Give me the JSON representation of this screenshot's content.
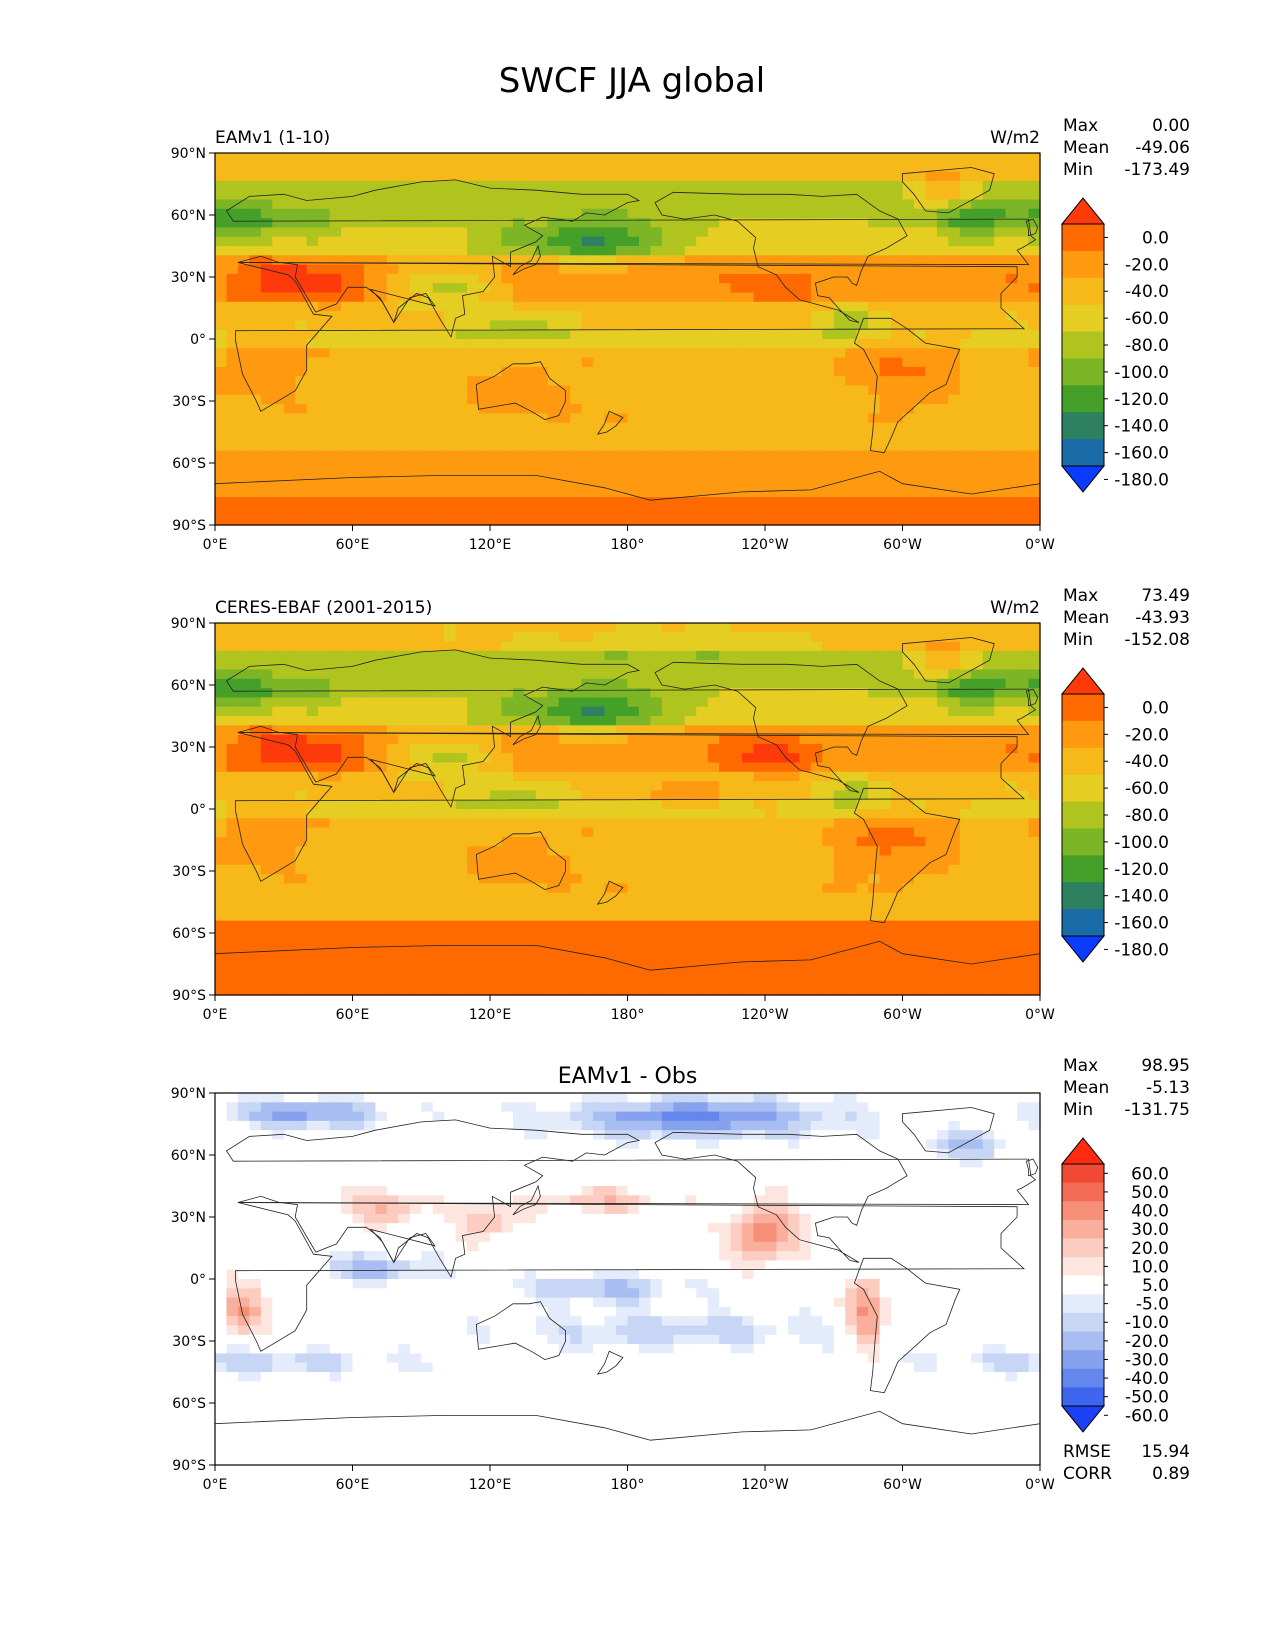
{
  "title": "SWCF JJA global",
  "panels": [
    {
      "id": "test",
      "left_label": "EAMv1 (1-10)",
      "center_label": "",
      "units": "W/m2",
      "stats": [
        {
          "label": "Max",
          "value": "0.00"
        },
        {
          "label": "Mean",
          "value": "-49.06"
        },
        {
          "label": "Min",
          "value": "-173.49"
        }
      ],
      "bottom_stats": [],
      "colorbar": {
        "labels": [
          "0.0",
          "-20.0",
          "-40.0",
          "-60.0",
          "-80.0",
          "-100.0",
          "-120.0",
          "-140.0",
          "-160.0",
          "-180.0"
        ],
        "colors": [
          "#ff3a0a",
          "#ff6a00",
          "#ff9a10",
          "#f7b81a",
          "#e6cd22",
          "#b0c420",
          "#7cb526",
          "#45a02a",
          "#2d8060",
          "#1a6aa8",
          "#0a3cff"
        ]
      }
    },
    {
      "id": "reference",
      "left_label": "CERES-EBAF (2001-2015)",
      "center_label": "",
      "units": "W/m2",
      "stats": [
        {
          "label": "Max",
          "value": "73.49"
        },
        {
          "label": "Mean",
          "value": "-43.93"
        },
        {
          "label": "Min",
          "value": "-152.08"
        }
      ],
      "bottom_stats": [],
      "colorbar": {
        "labels": [
          "0.0",
          "-20.0",
          "-40.0",
          "-60.0",
          "-80.0",
          "-100.0",
          "-120.0",
          "-140.0",
          "-160.0",
          "-180.0"
        ],
        "colors": [
          "#ff3a0a",
          "#ff6a00",
          "#ff9a10",
          "#f7b81a",
          "#e6cd22",
          "#b0c420",
          "#7cb526",
          "#45a02a",
          "#2d8060",
          "#1a6aa8",
          "#0a3cff"
        ]
      }
    },
    {
      "id": "difference",
      "left_label": "",
      "center_label": "EAMv1 - Obs",
      "units": "",
      "stats": [
        {
          "label": "Max",
          "value": "98.95"
        },
        {
          "label": "Mean",
          "value": "-5.13"
        },
        {
          "label": "Min",
          "value": "-131.75"
        }
      ],
      "bottom_stats": [
        {
          "label": "RMSE",
          "value": "15.94"
        },
        {
          "label": "CORR",
          "value": "0.89"
        }
      ],
      "colorbar": {
        "labels": [
          "60.0",
          "50.0",
          "40.0",
          "30.0",
          "20.0",
          "10.0",
          "5.0",
          "-5.0",
          "-10.0",
          "-20.0",
          "-30.0",
          "-40.0",
          "-50.0",
          "-60.0"
        ],
        "colors": [
          "#ff2a10",
          "#f04a35",
          "#f46c55",
          "#f78e78",
          "#faae9c",
          "#fcccc0",
          "#fee6e0",
          "#ffffff",
          "#e4ebfb",
          "#c8d6f6",
          "#a8bdf2",
          "#86a2ee",
          "#6387ec",
          "#3f66ee",
          "#1c40f5"
        ]
      }
    }
  ],
  "chart_data": [
    {
      "type": "heatmap",
      "subtype": "global map, filled contours",
      "title": "EAMv1 (1-10)",
      "units": "W/m2",
      "xlabel": "",
      "ylabel": "",
      "x_ticks": [
        "0°E",
        "60°E",
        "120°E",
        "180°",
        "120°W",
        "60°W",
        "0°W"
      ],
      "y_ticks": [
        "90°N",
        "60°N",
        "30°N",
        "0°",
        "30°S",
        "60°S",
        "90°S"
      ],
      "x_range_deg_east": [
        0,
        360
      ],
      "y_range_deg_lat": [
        -90,
        90
      ],
      "levels": [
        -180,
        -160,
        -140,
        -120,
        -100,
        -80,
        -60,
        -40,
        -20,
        0
      ],
      "stats": {
        "max": 0.0,
        "mean": -49.06,
        "min": -173.49
      },
      "zonal_mean_approx": [
        {
          "lat": 85,
          "value": -50
        },
        {
          "lat": 60,
          "value": -90
        },
        {
          "lat": 45,
          "value": -85
        },
        {
          "lat": 30,
          "value": -40
        },
        {
          "lat": 15,
          "value": -55
        },
        {
          "lat": 5,
          "value": -65
        },
        {
          "lat": -10,
          "value": -50
        },
        {
          "lat": -30,
          "value": -45
        },
        {
          "lat": -45,
          "value": -55
        },
        {
          "lat": -65,
          "value": -25
        },
        {
          "lat": -85,
          "value": -15
        }
      ]
    },
    {
      "type": "heatmap",
      "subtype": "global map, filled contours",
      "title": "CERES-EBAF (2001-2015)",
      "units": "W/m2",
      "xlabel": "",
      "ylabel": "",
      "x_ticks": [
        "0°E",
        "60°E",
        "120°E",
        "180°",
        "120°W",
        "60°W",
        "0°W"
      ],
      "y_ticks": [
        "90°N",
        "60°N",
        "30°N",
        "0°",
        "30°S",
        "60°S",
        "90°S"
      ],
      "x_range_deg_east": [
        0,
        360
      ],
      "y_range_deg_lat": [
        -90,
        90
      ],
      "levels": [
        -180,
        -160,
        -140,
        -120,
        -100,
        -80,
        -60,
        -40,
        -20,
        0
      ],
      "stats": {
        "max": 73.49,
        "mean": -43.93,
        "min": -152.08
      },
      "zonal_mean_approx": [
        {
          "lat": 85,
          "value": -45
        },
        {
          "lat": 60,
          "value": -80
        },
        {
          "lat": 45,
          "value": -85
        },
        {
          "lat": 30,
          "value": -40
        },
        {
          "lat": 15,
          "value": -55
        },
        {
          "lat": 5,
          "value": -60
        },
        {
          "lat": -10,
          "value": -35
        },
        {
          "lat": -30,
          "value": -35
        },
        {
          "lat": -45,
          "value": -45
        },
        {
          "lat": -65,
          "value": -10
        },
        {
          "lat": -85,
          "value": -15
        }
      ]
    },
    {
      "type": "heatmap",
      "subtype": "global map, filled contours (difference)",
      "title": "EAMv1 - Obs",
      "xlabel": "",
      "ylabel": "",
      "x_ticks": [
        "0°E",
        "60°E",
        "120°E",
        "180°",
        "120°W",
        "60°W",
        "0°W"
      ],
      "y_ticks": [
        "90°N",
        "60°N",
        "30°N",
        "0°",
        "30°S",
        "60°S",
        "90°S"
      ],
      "x_range_deg_east": [
        0,
        360
      ],
      "y_range_deg_lat": [
        -90,
        90
      ],
      "levels": [
        -60,
        -50,
        -40,
        -30,
        -20,
        -10,
        -5,
        5,
        10,
        20,
        30,
        40,
        50,
        60
      ],
      "stats": {
        "max": 98.95,
        "mean": -5.13,
        "min": -131.75,
        "rmse": 15.94,
        "corr": 0.89
      }
    }
  ]
}
